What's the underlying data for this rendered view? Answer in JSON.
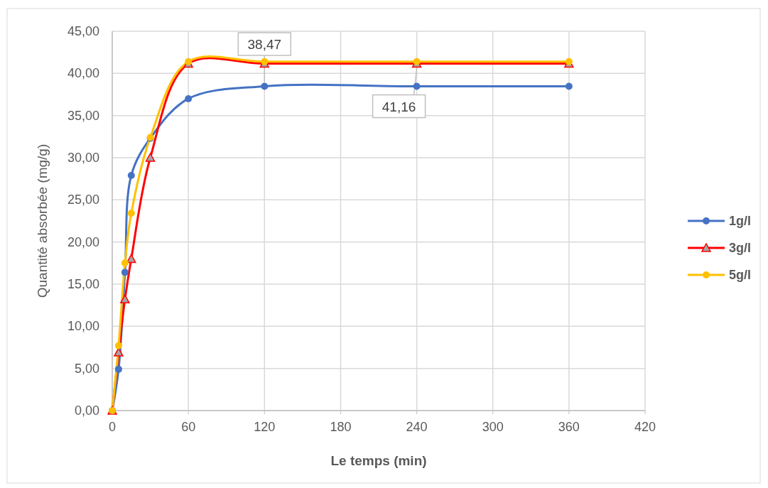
{
  "chart_data": {
    "type": "line",
    "xlabel": "Le temps (min)",
    "ylabel": "Quantité absorbée (mg/g)",
    "x": [
      0,
      5,
      10,
      15,
      30,
      60,
      120,
      240,
      360
    ],
    "series": [
      {
        "name": "1g/l",
        "color": "#4472c4",
        "marker": "circle",
        "values": [
          0,
          4.9,
          16.4,
          27.9,
          32.3,
          37.0,
          38.47,
          38.47,
          38.47
        ]
      },
      {
        "name": "3g/l",
        "color": "#ff0000",
        "marker": "triangle",
        "values": [
          0,
          6.9,
          13.2,
          18.0,
          30.0,
          41.16,
          41.16,
          41.16,
          41.16
        ]
      },
      {
        "name": "5g/l",
        "color": "#ffc000",
        "marker": "circle",
        "values": [
          0,
          7.7,
          17.5,
          23.4,
          32.4,
          41.4,
          41.4,
          41.4,
          41.4
        ]
      }
    ],
    "xlim": [
      0,
      420
    ],
    "xticks": [
      0,
      60,
      120,
      180,
      240,
      300,
      360,
      420
    ],
    "ylim": [
      0,
      45
    ],
    "yticks": [
      {
        "value": 0,
        "label": "0,00"
      },
      {
        "value": 5,
        "label": "5,00"
      },
      {
        "value": 10,
        "label": "10,00"
      },
      {
        "value": 15,
        "label": "15,00"
      },
      {
        "value": 20,
        "label": "20,00"
      },
      {
        "value": 25,
        "label": "25,00"
      },
      {
        "value": 30,
        "label": "30,00"
      },
      {
        "value": 35,
        "label": "35,00"
      },
      {
        "value": 40,
        "label": "40,00"
      },
      {
        "value": 45,
        "label": "45,00"
      }
    ],
    "grid": true,
    "legend": "right",
    "line_style": "solid",
    "annotations": [
      {
        "text": "38,47",
        "x": 120,
        "y": 38.47
      },
      {
        "text": "41,16",
        "x": 240,
        "y": 41.16
      }
    ]
  }
}
